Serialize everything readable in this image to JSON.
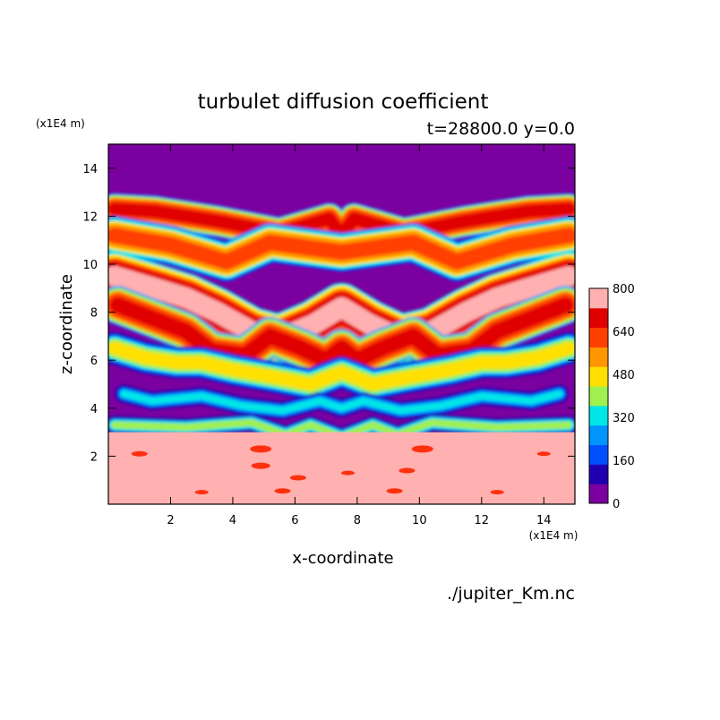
{
  "chart_data": {
    "type": "heatmap",
    "subtype": "filled-contour",
    "title": "turbulet diffusion coefficient",
    "subtitle": "t=28800.0 y=0.0",
    "xlabel": "x-coordinate",
    "ylabel": "z-coordinate",
    "x_unit": "(x1E4 m)",
    "y_unit": "(x1E4 m)",
    "source": "./jupiter_Km.nc",
    "xlim": [
      0,
      15
    ],
    "ylim": [
      0,
      15
    ],
    "xticks": [
      2,
      4,
      6,
      8,
      10,
      12,
      14
    ],
    "yticks": [
      2,
      4,
      6,
      8,
      10,
      12,
      14
    ],
    "colorbar": {
      "min": 0,
      "max": 800,
      "levels": [
        0,
        80,
        160,
        240,
        320,
        400,
        480,
        560,
        640,
        720,
        800
      ],
      "tick_labels": [
        "0",
        "160",
        "320",
        "480",
        "640",
        "800"
      ],
      "colors": [
        "#7a00a0",
        "#1f00b0",
        "#0050ff",
        "#0094ff",
        "#00e6e6",
        "#a0f050",
        "#ffe000",
        "#ff9600",
        "#ff4000",
        "#e00000",
        "#ffb0b0"
      ]
    },
    "regions": [
      {
        "name": "background",
        "z_range": [
          3.0,
          15
        ],
        "value": 0
      },
      {
        "name": "lower-layer",
        "z_range": [
          0,
          3.0
        ],
        "value": 800
      },
      {
        "name": "turbulent-bands",
        "z_range": [
          3.5,
          12.5
        ],
        "value_range": [
          80,
          800
        ]
      }
    ]
  }
}
